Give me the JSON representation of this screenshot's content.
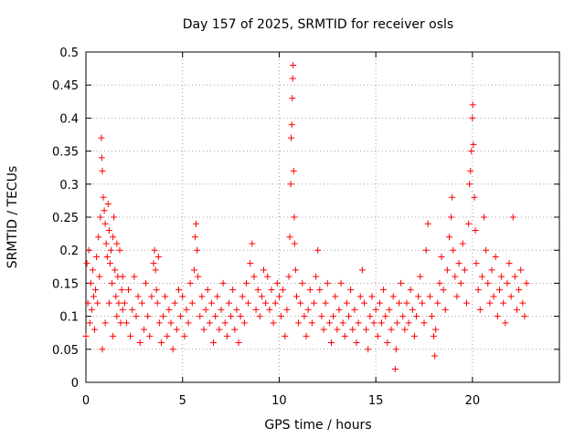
{
  "chart_data": {
    "type": "scatter",
    "title": "Day 157 of 2025, SRMTID for receiver osls",
    "xlabel": "GPS time / hours",
    "ylabel": "SRMTID / TECUs",
    "xlim": [
      0,
      24.5
    ],
    "ylim": [
      0,
      0.5
    ],
    "x_ticks": [
      0,
      5,
      10,
      15,
      20
    ],
    "x_tick_labels": [
      "0",
      "5",
      "10",
      "15",
      "20"
    ],
    "y_ticks": [
      0,
      0.05,
      0.1,
      0.15,
      0.2,
      0.25,
      0.3,
      0.35,
      0.4,
      0.45,
      0.5
    ],
    "y_tick_labels": [
      "0",
      "0.05",
      "0.1",
      "0.15",
      "0.2",
      "0.25",
      "0.3",
      "0.35",
      "0.4",
      "0.45",
      "0.5"
    ],
    "grid": true,
    "marker": "+",
    "color": "#ff0000",
    "series": [
      {
        "name": "osls",
        "points": [
          [
            0.0,
            0.07
          ],
          [
            0.05,
            0.18
          ],
          [
            0.1,
            0.12
          ],
          [
            0.15,
            0.2
          ],
          [
            0.2,
            0.09
          ],
          [
            0.25,
            0.15
          ],
          [
            0.3,
            0.11
          ],
          [
            0.35,
            0.17
          ],
          [
            0.4,
            0.13
          ],
          [
            0.45,
            0.08
          ],
          [
            0.5,
            0.14
          ],
          [
            0.55,
            0.19
          ],
          [
            0.6,
            0.12
          ],
          [
            0.65,
            0.22
          ],
          [
            0.7,
            0.16
          ],
          [
            0.75,
            0.25
          ],
          [
            0.8,
            0.37
          ],
          [
            0.82,
            0.34
          ],
          [
            0.85,
            0.32
          ],
          [
            0.9,
            0.28
          ],
          [
            0.95,
            0.26
          ],
          [
            1.0,
            0.24
          ],
          [
            1.05,
            0.21
          ],
          [
            1.1,
            0.19
          ],
          [
            1.15,
            0.27
          ],
          [
            1.2,
            0.23
          ],
          [
            1.25,
            0.18
          ],
          [
            1.3,
            0.2
          ],
          [
            1.35,
            0.15
          ],
          [
            1.4,
            0.22
          ],
          [
            1.45,
            0.25
          ],
          [
            1.5,
            0.17
          ],
          [
            1.55,
            0.13
          ],
          [
            1.6,
            0.21
          ],
          [
            1.65,
            0.16
          ],
          [
            1.7,
            0.12
          ],
          [
            1.75,
            0.2
          ],
          [
            1.8,
            0.09
          ],
          [
            1.85,
            0.14
          ],
          [
            1.9,
            0.11
          ],
          [
            0.85,
            0.05
          ],
          [
            1.0,
            0.09
          ],
          [
            1.2,
            0.12
          ],
          [
            1.4,
            0.07
          ],
          [
            1.6,
            0.1
          ],
          [
            1.9,
            0.16
          ],
          [
            2.0,
            0.12
          ],
          [
            2.1,
            0.09
          ],
          [
            2.2,
            0.14
          ],
          [
            2.3,
            0.07
          ],
          [
            2.4,
            0.11
          ],
          [
            2.5,
            0.16
          ],
          [
            2.6,
            0.1
          ],
          [
            2.7,
            0.13
          ],
          [
            2.8,
            0.06
          ],
          [
            2.9,
            0.12
          ],
          [
            3.0,
            0.08
          ],
          [
            3.1,
            0.15
          ],
          [
            3.2,
            0.1
          ],
          [
            3.3,
            0.07
          ],
          [
            3.4,
            0.13
          ],
          [
            3.5,
            0.18
          ],
          [
            3.55,
            0.2
          ],
          [
            3.6,
            0.17
          ],
          [
            3.65,
            0.14
          ],
          [
            3.7,
            0.12
          ],
          [
            3.75,
            0.19
          ],
          [
            3.8,
            0.09
          ],
          [
            3.9,
            0.06
          ],
          [
            4.0,
            0.1
          ],
          [
            4.1,
            0.13
          ],
          [
            4.2,
            0.07
          ],
          [
            4.3,
            0.11
          ],
          [
            4.4,
            0.09
          ],
          [
            4.5,
            0.05
          ],
          [
            4.6,
            0.12
          ],
          [
            4.7,
            0.08
          ],
          [
            4.8,
            0.14
          ],
          [
            4.9,
            0.1
          ],
          [
            5.0,
            0.13
          ],
          [
            5.1,
            0.07
          ],
          [
            5.2,
            0.11
          ],
          [
            5.3,
            0.09
          ],
          [
            5.4,
            0.15
          ],
          [
            5.5,
            0.12
          ],
          [
            5.6,
            0.17
          ],
          [
            5.65,
            0.22
          ],
          [
            5.7,
            0.24
          ],
          [
            5.75,
            0.2
          ],
          [
            5.8,
            0.16
          ],
          [
            5.9,
            0.1
          ],
          [
            6.0,
            0.13
          ],
          [
            6.1,
            0.08
          ],
          [
            6.2,
            0.11
          ],
          [
            6.3,
            0.14
          ],
          [
            6.4,
            0.09
          ],
          [
            6.5,
            0.12
          ],
          [
            6.6,
            0.06
          ],
          [
            6.7,
            0.1
          ],
          [
            6.8,
            0.13
          ],
          [
            6.9,
            0.08
          ],
          [
            7.0,
            0.11
          ],
          [
            7.1,
            0.15
          ],
          [
            7.2,
            0.09
          ],
          [
            7.3,
            0.07
          ],
          [
            7.4,
            0.12
          ],
          [
            7.5,
            0.1
          ],
          [
            7.6,
            0.14
          ],
          [
            7.7,
            0.08
          ],
          [
            7.8,
            0.11
          ],
          [
            7.9,
            0.06
          ],
          [
            8.0,
            0.1
          ],
          [
            8.1,
            0.13
          ],
          [
            8.2,
            0.09
          ],
          [
            8.3,
            0.15
          ],
          [
            8.4,
            0.12
          ],
          [
            8.5,
            0.18
          ],
          [
            8.6,
            0.21
          ],
          [
            8.7,
            0.16
          ],
          [
            8.8,
            0.11
          ],
          [
            8.9,
            0.14
          ],
          [
            9.0,
            0.1
          ],
          [
            9.1,
            0.13
          ],
          [
            9.2,
            0.17
          ],
          [
            9.3,
            0.12
          ],
          [
            9.4,
            0.16
          ],
          [
            9.5,
            0.11
          ],
          [
            9.6,
            0.14
          ],
          [
            9.7,
            0.09
          ],
          [
            9.8,
            0.12
          ],
          [
            9.9,
            0.15
          ],
          [
            10.0,
            0.13
          ],
          [
            10.1,
            0.1
          ],
          [
            10.2,
            0.14
          ],
          [
            10.3,
            0.07
          ],
          [
            10.4,
            0.11
          ],
          [
            10.5,
            0.16
          ],
          [
            10.55,
            0.22
          ],
          [
            10.6,
            0.3
          ],
          [
            10.62,
            0.37
          ],
          [
            10.65,
            0.39
          ],
          [
            10.68,
            0.43
          ],
          [
            10.7,
            0.46
          ],
          [
            10.72,
            0.48
          ],
          [
            10.75,
            0.32
          ],
          [
            10.78,
            0.25
          ],
          [
            10.8,
            0.21
          ],
          [
            10.85,
            0.17
          ],
          [
            10.9,
            0.13
          ],
          [
            11.0,
            0.09
          ],
          [
            11.1,
            0.12
          ],
          [
            11.2,
            0.15
          ],
          [
            11.3,
            0.1
          ],
          [
            11.4,
            0.07
          ],
          [
            11.5,
            0.11
          ],
          [
            11.6,
            0.14
          ],
          [
            11.7,
            0.09
          ],
          [
            11.8,
            0.12
          ],
          [
            11.9,
            0.16
          ],
          [
            12.0,
            0.2
          ],
          [
            12.1,
            0.14
          ],
          [
            12.2,
            0.1
          ],
          [
            12.3,
            0.08
          ],
          [
            12.4,
            0.12
          ],
          [
            12.5,
            0.15
          ],
          [
            12.6,
            0.09
          ],
          [
            12.7,
            0.06
          ],
          [
            12.8,
            0.1
          ],
          [
            12.9,
            0.13
          ],
          [
            13.0,
            0.08
          ],
          [
            13.1,
            0.11
          ],
          [
            13.2,
            0.15
          ],
          [
            13.3,
            0.09
          ],
          [
            13.4,
            0.07
          ],
          [
            13.5,
            0.12
          ],
          [
            13.6,
            0.1
          ],
          [
            13.7,
            0.14
          ],
          [
            13.8,
            0.08
          ],
          [
            13.9,
            0.11
          ],
          [
            14.0,
            0.06
          ],
          [
            14.1,
            0.09
          ],
          [
            14.2,
            0.13
          ],
          [
            14.3,
            0.17
          ],
          [
            14.4,
            0.12
          ],
          [
            14.5,
            0.08
          ],
          [
            14.6,
            0.05
          ],
          [
            14.7,
            0.1
          ],
          [
            14.8,
            0.13
          ],
          [
            14.9,
            0.09
          ],
          [
            15.0,
            0.11
          ],
          [
            15.1,
            0.07
          ],
          [
            15.2,
            0.12
          ],
          [
            15.3,
            0.09
          ],
          [
            15.4,
            0.14
          ],
          [
            15.5,
            0.1
          ],
          [
            15.6,
            0.06
          ],
          [
            15.7,
            0.11
          ],
          [
            15.8,
            0.08
          ],
          [
            15.9,
            0.13
          ],
          [
            16.0,
            0.02
          ],
          [
            16.05,
            0.05
          ],
          [
            16.1,
            0.09
          ],
          [
            16.2,
            0.12
          ],
          [
            16.3,
            0.15
          ],
          [
            16.4,
            0.1
          ],
          [
            16.5,
            0.08
          ],
          [
            16.6,
            0.12
          ],
          [
            16.7,
            0.09
          ],
          [
            16.8,
            0.14
          ],
          [
            16.9,
            0.11
          ],
          [
            17.0,
            0.07
          ],
          [
            17.1,
            0.1
          ],
          [
            17.2,
            0.13
          ],
          [
            17.3,
            0.16
          ],
          [
            17.4,
            0.12
          ],
          [
            17.5,
            0.09
          ],
          [
            17.6,
            0.2
          ],
          [
            17.7,
            0.24
          ],
          [
            17.8,
            0.13
          ],
          [
            17.9,
            0.1
          ],
          [
            18.0,
            0.07
          ],
          [
            18.05,
            0.04
          ],
          [
            18.1,
            0.08
          ],
          [
            18.2,
            0.12
          ],
          [
            18.3,
            0.15
          ],
          [
            18.4,
            0.19
          ],
          [
            18.5,
            0.14
          ],
          [
            18.6,
            0.11
          ],
          [
            18.7,
            0.17
          ],
          [
            18.8,
            0.22
          ],
          [
            18.9,
            0.25
          ],
          [
            18.95,
            0.28
          ],
          [
            19.0,
            0.2
          ],
          [
            19.1,
            0.16
          ],
          [
            19.2,
            0.13
          ],
          [
            19.3,
            0.18
          ],
          [
            19.4,
            0.15
          ],
          [
            19.5,
            0.21
          ],
          [
            19.6,
            0.17
          ],
          [
            19.7,
            0.12
          ],
          [
            19.8,
            0.24
          ],
          [
            19.85,
            0.3
          ],
          [
            19.9,
            0.32
          ],
          [
            19.95,
            0.35
          ],
          [
            20.0,
            0.4
          ],
          [
            20.02,
            0.42
          ],
          [
            20.05,
            0.36
          ],
          [
            20.1,
            0.28
          ],
          [
            20.15,
            0.23
          ],
          [
            20.2,
            0.18
          ],
          [
            20.3,
            0.14
          ],
          [
            20.4,
            0.11
          ],
          [
            20.5,
            0.16
          ],
          [
            20.6,
            0.25
          ],
          [
            20.7,
            0.2
          ],
          [
            20.8,
            0.15
          ],
          [
            20.9,
            0.12
          ],
          [
            21.0,
            0.17
          ],
          [
            21.1,
            0.13
          ],
          [
            21.2,
            0.19
          ],
          [
            21.3,
            0.1
          ],
          [
            21.4,
            0.14
          ],
          [
            21.5,
            0.16
          ],
          [
            21.6,
            0.12
          ],
          [
            21.7,
            0.09
          ],
          [
            21.8,
            0.15
          ],
          [
            21.9,
            0.18
          ],
          [
            22.0,
            0.13
          ],
          [
            22.1,
            0.25
          ],
          [
            22.2,
            0.16
          ],
          [
            22.3,
            0.11
          ],
          [
            22.4,
            0.14
          ],
          [
            22.5,
            0.17
          ],
          [
            22.6,
            0.12
          ],
          [
            22.7,
            0.1
          ],
          [
            22.8,
            0.15
          ]
        ]
      }
    ]
  }
}
